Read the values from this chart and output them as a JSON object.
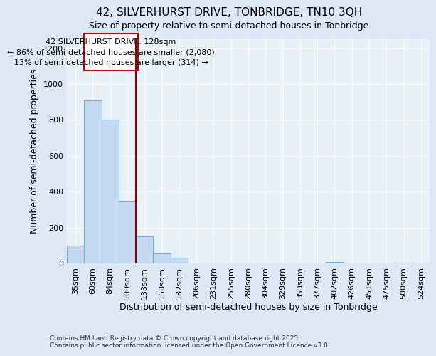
{
  "title": "42, SILVERHURST DRIVE, TONBRIDGE, TN10 3QH",
  "subtitle": "Size of property relative to semi-detached houses in Tonbridge",
  "xlabel": "Distribution of semi-detached houses by size in Tonbridge",
  "ylabel": "Number of semi-detached properties",
  "categories": [
    "35sqm",
    "60sqm",
    "84sqm",
    "109sqm",
    "133sqm",
    "158sqm",
    "182sqm",
    "206sqm",
    "231sqm",
    "255sqm",
    "280sqm",
    "304sqm",
    "329sqm",
    "353sqm",
    "377sqm",
    "402sqm",
    "426sqm",
    "451sqm",
    "475sqm",
    "500sqm",
    "524sqm"
  ],
  "values": [
    100,
    910,
    800,
    345,
    150,
    55,
    30,
    0,
    0,
    0,
    0,
    0,
    0,
    0,
    0,
    8,
    0,
    0,
    0,
    5,
    0
  ],
  "bar_color": "#c5d9f0",
  "bar_edge_color": "#7badd4",
  "property_line_label": "42 SILVERHURST DRIVE: 128sqm",
  "annotation_line1": "← 86% of semi-detached houses are smaller (2,080)",
  "annotation_line2": "13% of semi-detached houses are larger (314) →",
  "box_color": "#cc0000",
  "line_color": "#8b0000",
  "ylim": [
    0,
    1250
  ],
  "yticks": [
    0,
    200,
    400,
    600,
    800,
    1000,
    1200
  ],
  "footnote1": "Contains HM Land Registry data © Crown copyright and database right 2025.",
  "footnote2": "Contains public sector information licensed under the Open Government Licence v3.0.",
  "bg_color": "#dde8f4",
  "plot_bg_color": "#e8f0f8",
  "title_fontsize": 11,
  "axis_fontsize": 9,
  "tick_fontsize": 8,
  "annot_fontsize": 8
}
